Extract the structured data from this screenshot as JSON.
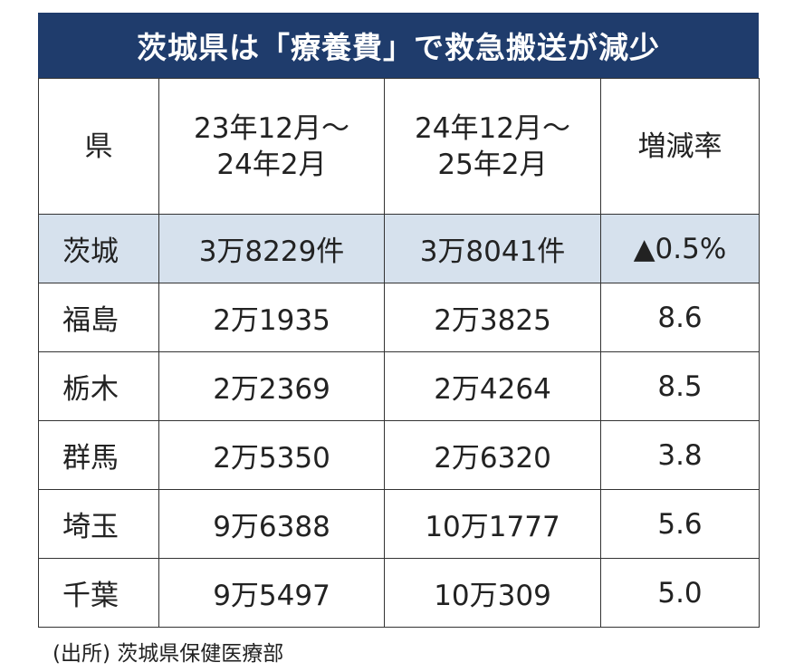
{
  "header": {
    "title": "茨城県は「療養費」で救急搬送が減少"
  },
  "table": {
    "columns": [
      [
        "県"
      ],
      [
        "23年12月～",
        "24年2月"
      ],
      [
        "24年12月～",
        "25年2月"
      ],
      [
        "増減率"
      ]
    ],
    "rows": [
      [
        "茨城",
        "3万8229件",
        "3万8041件",
        "▲0.5%"
      ],
      [
        "福島",
        "2万1935",
        "2万3825",
        "8.6"
      ],
      [
        "栃木",
        "2万2369",
        "2万4264",
        "8.5"
      ],
      [
        "群馬",
        "2万5350",
        "2万6320",
        "3.8"
      ],
      [
        "埼玉",
        "9万6388",
        "10万1777",
        "5.6"
      ],
      [
        "千葉",
        "9万5497",
        "10万309",
        "5.0"
      ]
    ]
  },
  "footer": {
    "source": "(出所) 茨城県保健医療部"
  }
}
